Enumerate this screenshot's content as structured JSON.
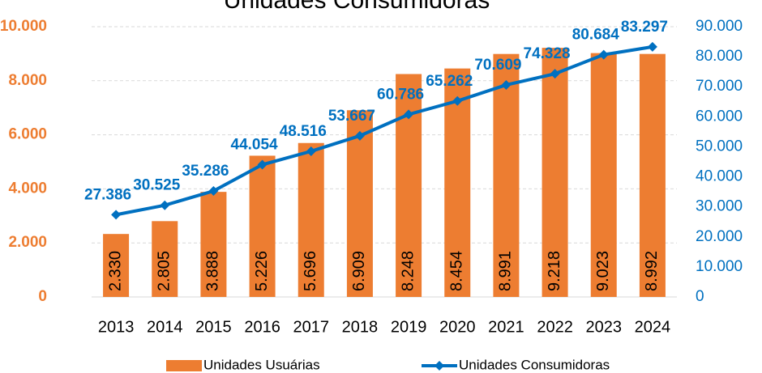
{
  "chart_data": {
    "type": "bar",
    "title": "Unidades Consumidoras",
    "categories": [
      "2013",
      "2014",
      "2015",
      "2016",
      "2017",
      "2018",
      "2019",
      "2020",
      "2021",
      "2022",
      "2023",
      "2024"
    ],
    "series": [
      {
        "name": "Unidades Usuárias",
        "type": "bar",
        "color": "#ED7D31",
        "values": [
          2330,
          2805,
          3888,
          5226,
          5696,
          6909,
          8248,
          8454,
          8991,
          9218,
          9023,
          8992
        ],
        "value_labels": [
          "2.330",
          "2.805",
          "3.888",
          "5.226",
          "5.696",
          "6.909",
          "8.248",
          "8.454",
          "8.991",
          "9.218",
          "9.023",
          "8.992"
        ]
      },
      {
        "name": "Unidades Consumidoras",
        "type": "line",
        "axis": "y2",
        "color": "#0070C0",
        "values": [
          27386,
          30525,
          35286,
          44054,
          48516,
          53667,
          60786,
          65262,
          70609,
          74328,
          80684,
          83297
        ],
        "value_labels": [
          "27.386",
          "30.525",
          "35.286",
          "44.054",
          "48.516",
          "53.667",
          "60.786",
          "65.262",
          "70.609",
          "74.328",
          "80.684",
          "83.297"
        ]
      }
    ],
    "ylim": [
      0,
      10000
    ],
    "yticks": [
      0,
      {
        "value": 2000,
        "label": "2.000"
      },
      {
        "value": 4000,
        "label": "4.000"
      },
      {
        "value": 6000,
        "label": "6.000"
      },
      {
        "value": 8000,
        "label": "8.000"
      },
      {
        "value": 10000,
        "label": "10.000"
      }
    ],
    "y2lim": [
      0,
      90000
    ],
    "y2ticks": [
      0,
      {
        "value": 10000,
        "label": "10.000"
      },
      {
        "value": 20000,
        "label": "20.000"
      },
      {
        "value": 30000,
        "label": "30.000"
      },
      {
        "value": 40000,
        "label": "40.000"
      },
      {
        "value": 50000,
        "label": "50.000"
      },
      {
        "value": 60000,
        "label": "60.000"
      },
      {
        "value": 70000,
        "label": "70.000"
      },
      {
        "value": 80000,
        "label": "80.000"
      },
      {
        "value": 90000,
        "label": "90.000"
      }
    ],
    "grid": true,
    "legend": "bottom"
  }
}
